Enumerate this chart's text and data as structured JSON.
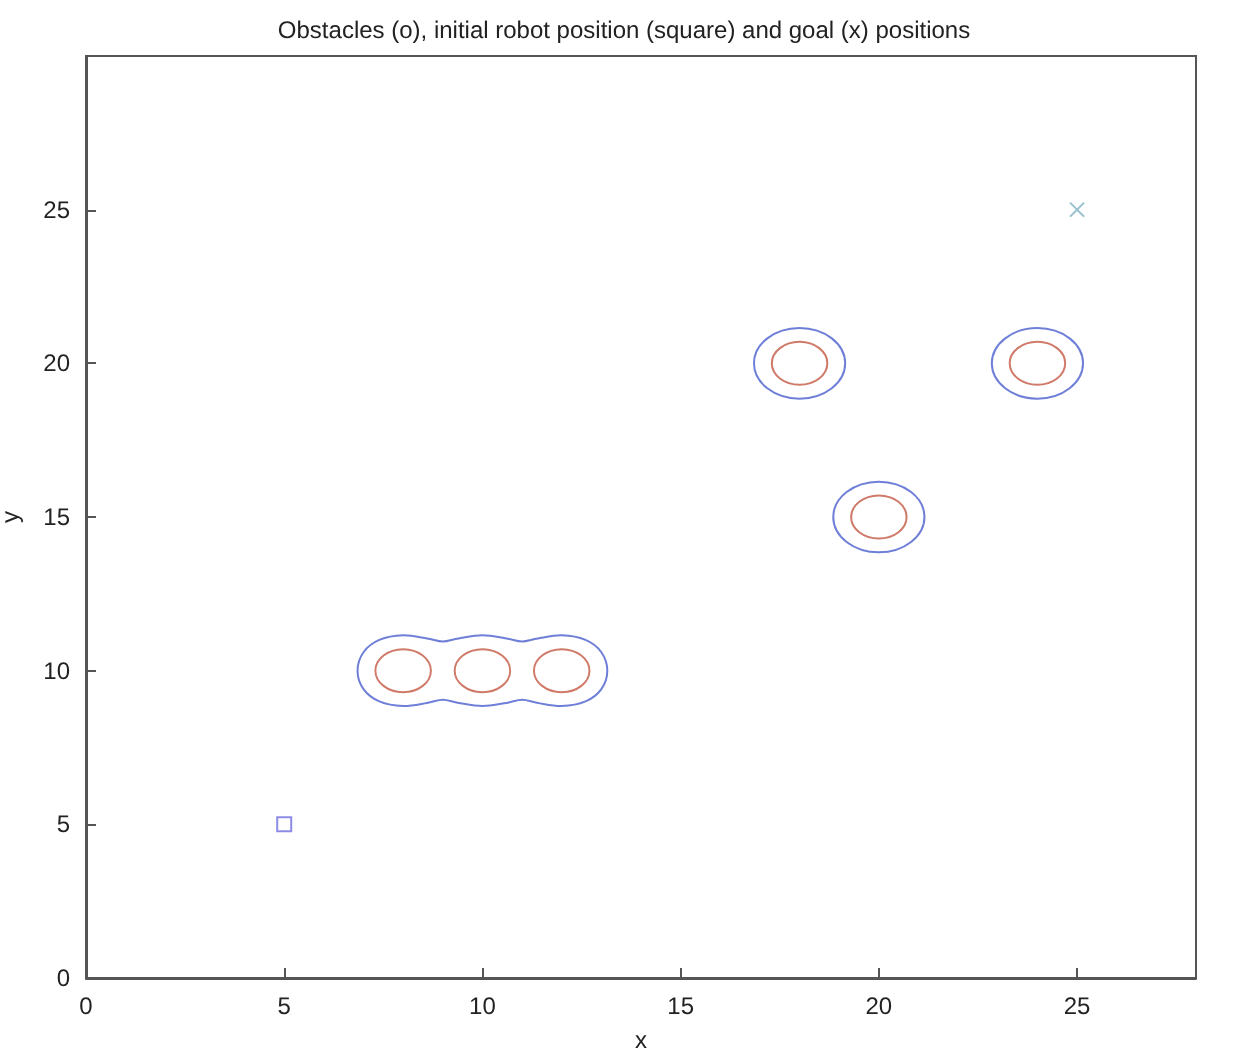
{
  "chart_data": {
    "type": "scatter",
    "title": "Obstacles (o), initial robot position (square) and goal (x) positions",
    "xlabel": "x",
    "ylabel": "y",
    "xlim": [
      0,
      28
    ],
    "ylim": [
      0,
      30
    ],
    "xticks": [
      0,
      5,
      10,
      15,
      20,
      25
    ],
    "yticks": [
      0,
      5,
      10,
      15,
      20,
      25
    ],
    "grid": false,
    "series": [
      {
        "marker": "square",
        "color": "#6f6fe0",
        "x": [
          5
        ],
        "values": [
          5
        ]
      },
      {
        "marker": "cross",
        "color": "#7fb0c0",
        "x": [
          25
        ],
        "values": [
          25
        ]
      }
    ]
  }
}
